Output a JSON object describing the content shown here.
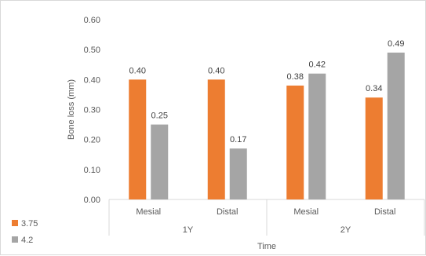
{
  "chart_data": {
    "type": "bar",
    "groups": [
      {
        "label": "1Y",
        "categories": [
          "Mesial",
          "Distal"
        ]
      },
      {
        "label": "2Y",
        "categories": [
          "Mesial",
          "Distal"
        ]
      }
    ],
    "series": [
      {
        "name": "3.75",
        "color": "#ed7d31",
        "values": [
          0.4,
          0.4,
          0.38,
          0.34
        ]
      },
      {
        "name": "4.2",
        "color": "#a5a5a5",
        "values": [
          0.25,
          0.17,
          0.42,
          0.49
        ]
      }
    ],
    "data_labels": [
      [
        "0.40",
        "0.40",
        "0.38",
        "0.34"
      ],
      [
        "0.25",
        "0.17",
        "0.42",
        "0.49"
      ]
    ],
    "yticks": [
      "0.00",
      "0.10",
      "0.20",
      "0.30",
      "0.40",
      "0.50",
      "0.60"
    ],
    "ylim": [
      0,
      0.6
    ],
    "ylabel": "Bone loss (mm)",
    "xlabel": "Time",
    "grid": false,
    "legend_position": "bottom-left"
  }
}
